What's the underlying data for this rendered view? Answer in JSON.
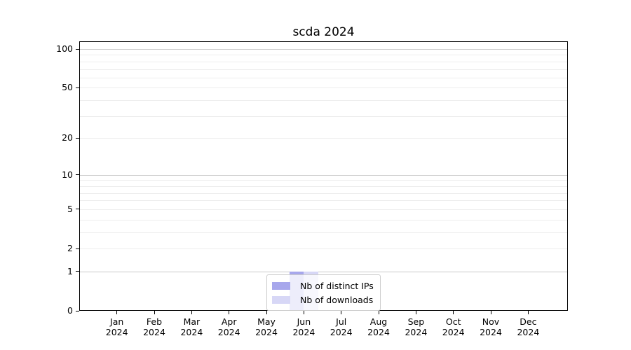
{
  "chart_data": {
    "type": "bar",
    "title": "scda 2024",
    "xlabel": "",
    "ylabel": "",
    "categories": [
      "Jan 2024",
      "Feb 2024",
      "Mar 2024",
      "Apr 2024",
      "May 2024",
      "Jun 2024",
      "Jul 2024",
      "Aug 2024",
      "Sep 2024",
      "Oct 2024",
      "Nov 2024",
      "Dec 2024"
    ],
    "series": [
      {
        "name": "Nb of distinct IPs",
        "color": "#a7a7ec",
        "values": [
          0,
          0,
          0,
          0,
          0,
          1,
          0,
          0,
          0,
          0,
          0,
          0
        ]
      },
      {
        "name": "Nb of downloads",
        "color": "#d7d7f6",
        "values": [
          0,
          0,
          0,
          0,
          0,
          1,
          0,
          0,
          0,
          0,
          0,
          0
        ]
      }
    ],
    "yscale": "log1p",
    "ylim": [
      0,
      100
    ],
    "y_labeled_ticks": [
      100,
      50,
      20,
      10,
      5,
      2,
      1,
      0
    ],
    "y_decade_gridlines": [
      100,
      10,
      1
    ],
    "y_minor_gridlines": [
      90,
      80,
      70,
      60,
      50,
      40,
      30,
      20,
      9,
      8,
      7,
      6,
      5,
      4,
      3,
      2
    ],
    "grid": true,
    "legend": {
      "position": "lower center"
    },
    "colors": {
      "decade_grid": "#c9c9c9",
      "minor_grid": "#ededed",
      "spine": "#000000",
      "text": "#000000",
      "background": "#ffffff"
    }
  }
}
